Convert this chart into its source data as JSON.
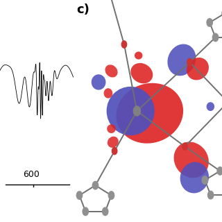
{
  "label_c": "c)",
  "scale_bar_value": "600",
  "background_color": "#ffffff",
  "text_color": "#000000",
  "label_fontsize": 13,
  "scale_fontsize": 9,
  "purple": "#5050bb",
  "red_orb": "#dd2222",
  "gray_atom": "#909090",
  "red_atom": "#cc3333",
  "bond_color": "#707070"
}
